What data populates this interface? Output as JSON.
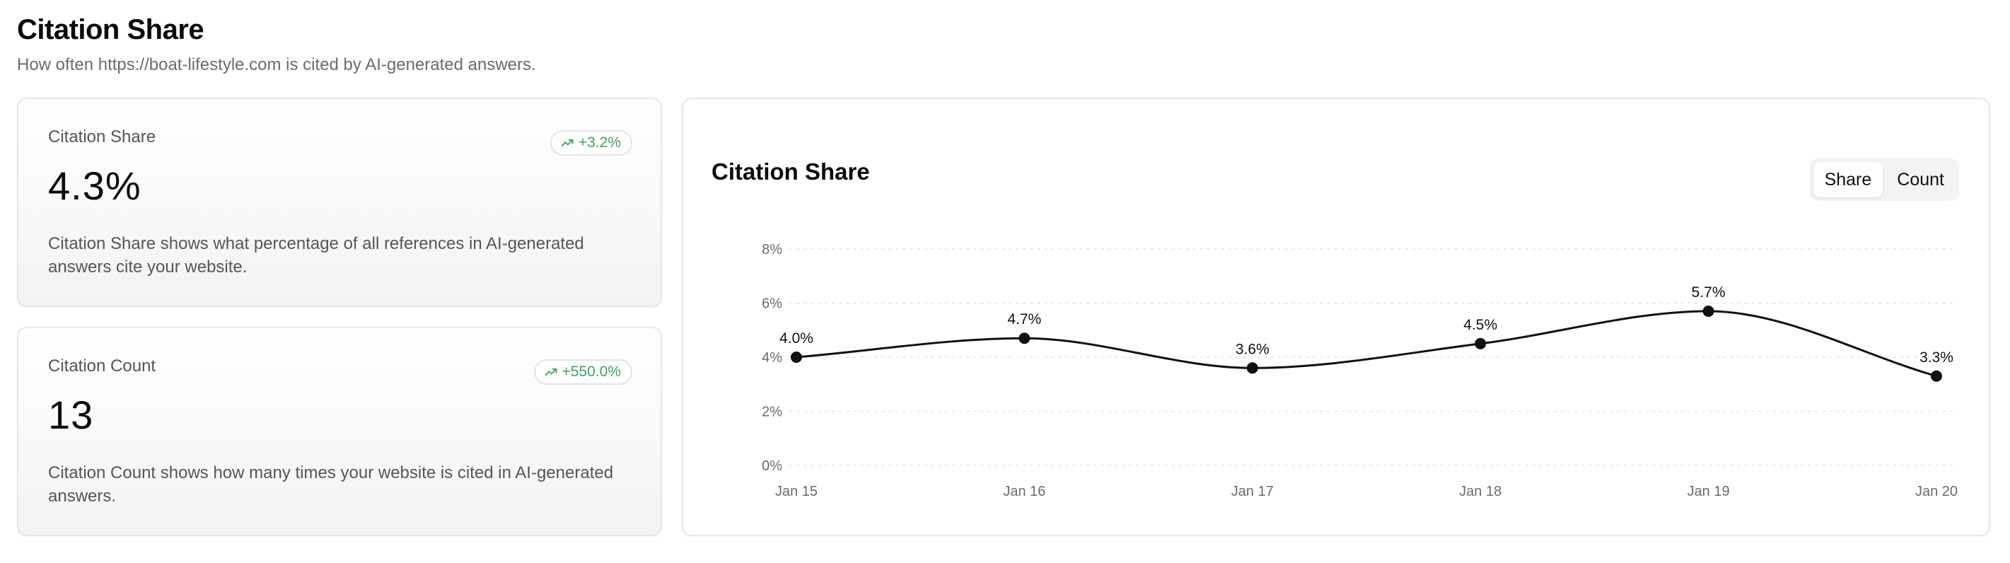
{
  "header": {
    "title": "Citation Share",
    "subtitle": "How often https://boat-lifestyle.com is cited by AI-generated answers."
  },
  "metrics": {
    "share": {
      "label": "Citation Share",
      "value": "4.3%",
      "delta": "+3.2%",
      "description": "Citation Share shows what percentage of all references in AI-generated answers cite your website."
    },
    "count": {
      "label": "Citation Count",
      "value": "13",
      "delta": "+550.0%",
      "description": "Citation Count shows how many times your website is cited in AI-generated answers."
    }
  },
  "chart_panel": {
    "title": "Citation Share",
    "toggle": {
      "share_label": "Share",
      "count_label": "Count",
      "active": "Share"
    }
  },
  "colors": {
    "delta_positive": "#3aa45a",
    "line": "#111111",
    "grid": "#e5e5e5"
  },
  "chart_data": {
    "type": "line",
    "categories": [
      "Jan 15",
      "Jan 16",
      "Jan 17",
      "Jan 18",
      "Jan 19",
      "Jan 20"
    ],
    "values": [
      4.0,
      4.7,
      3.6,
      4.5,
      5.7,
      3.3
    ],
    "data_labels": [
      "4.0%",
      "4.7%",
      "3.6%",
      "4.5%",
      "5.7%",
      "3.3%"
    ],
    "yticks": [
      "0%",
      "2%",
      "4%",
      "6%",
      "8%"
    ],
    "ytick_values": [
      0,
      2,
      4,
      6,
      8
    ],
    "ylim": [
      0,
      8
    ],
    "grid": true,
    "title": "Citation Share",
    "xlabel": "",
    "ylabel": ""
  }
}
